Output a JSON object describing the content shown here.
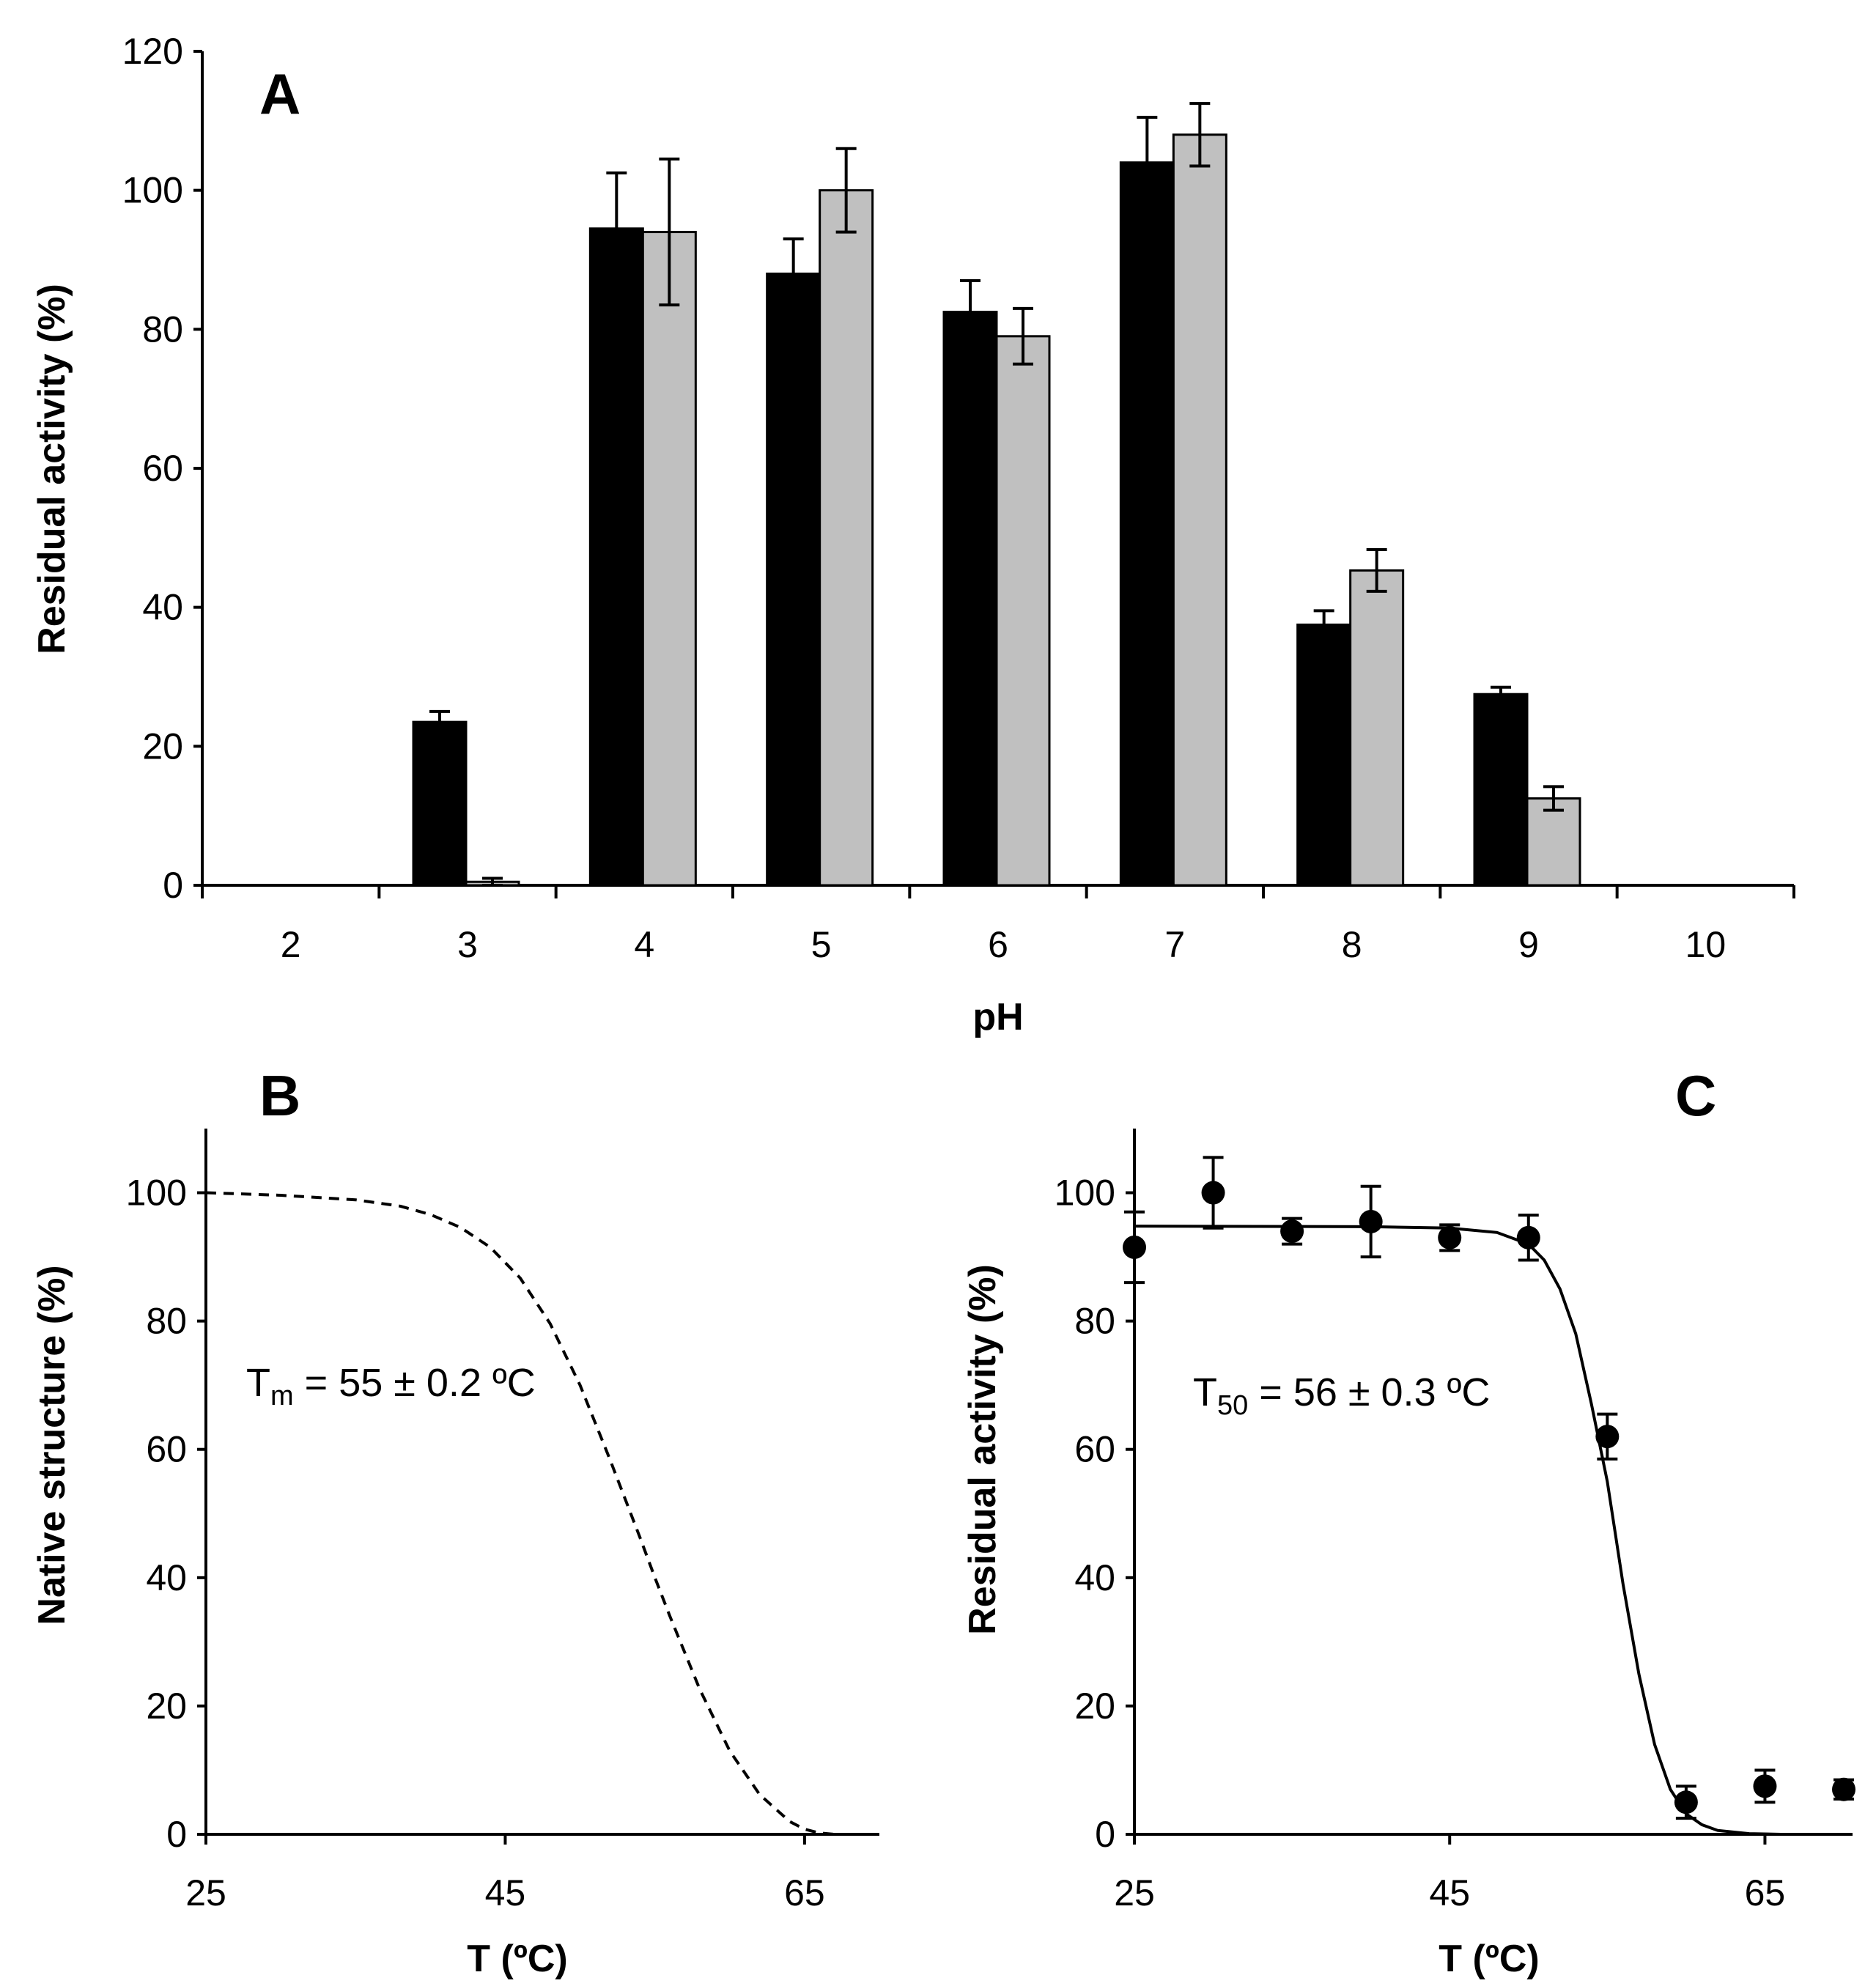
{
  "chart_data": [
    {
      "id": "A",
      "type": "bar",
      "panel_label": "A",
      "title": "",
      "xlabel": "pH",
      "ylabel": "Residual activity  (%)",
      "categories": [
        "2",
        "3",
        "4",
        "5",
        "6",
        "7",
        "8",
        "9",
        "10"
      ],
      "ylim": [
        0,
        120
      ],
      "yticks": [
        "0",
        "20",
        "40",
        "60",
        "80",
        "100",
        "120"
      ],
      "grid": false,
      "series": [
        {
          "name": "series-black",
          "color": "#000000",
          "values": [
            0,
            23.5,
            94.5,
            88,
            82.5,
            104,
            37.5,
            27.5,
            0
          ],
          "errors": [
            0,
            1.5,
            8,
            5,
            4.5,
            6.5,
            2,
            1,
            0
          ]
        },
        {
          "name": "series-grey",
          "color": "#c0c0c0",
          "values": [
            0,
            0.5,
            94,
            100,
            79,
            108,
            45.3,
            12.5,
            0
          ],
          "errors": [
            0,
            0.5,
            10.5,
            6,
            4,
            4.5,
            3,
            1.7,
            0
          ]
        }
      ]
    },
    {
      "id": "B",
      "type": "line",
      "panel_label": "B",
      "xlabel": "T (ºC)",
      "ylabel": "Native structure  (%)",
      "xlim": [
        25,
        70
      ],
      "ylim": [
        0,
        110
      ],
      "xticks": [
        "25",
        "45",
        "65"
      ],
      "yticks": [
        "0",
        "20",
        "40",
        "60",
        "80",
        "100"
      ],
      "annotation": {
        "prefix": "T",
        "sub": "m",
        "text": " = 55 ± 0.2 ºC"
      },
      "curve": {
        "style": "dashed",
        "x": [
          25,
          30,
          35,
          38,
          40,
          42,
          44,
          46,
          48,
          50,
          52,
          54,
          55,
          56,
          58,
          60,
          62,
          64,
          65,
          66,
          67
        ],
        "y": [
          100,
          99.6,
          98.9,
          97.9,
          96.6,
          94.6,
          91.5,
          86.7,
          79.6,
          70,
          58.4,
          46.3,
          40,
          34,
          22.6,
          13,
          6.2,
          2,
          0.8,
          0.2,
          0
        ]
      }
    },
    {
      "id": "C",
      "type": "scatter",
      "panel_label": "C",
      "xlabel": "T (ºC)",
      "ylabel": "Residual activity  (%)",
      "xlim": [
        25,
        70
      ],
      "ylim": [
        0,
        110
      ],
      "xticks": [
        "25",
        "45",
        "65"
      ],
      "yticks": [
        "0",
        "20",
        "40",
        "60",
        "80",
        "100"
      ],
      "annotation": {
        "prefix": "T",
        "sub": "50",
        "text": " = 56 ± 0.3 ºC"
      },
      "points": {
        "x": [
          25,
          30,
          35,
          40,
          45,
          50,
          55,
          60,
          65,
          70
        ],
        "y": [
          91.5,
          100,
          94,
          95.5,
          93,
          93,
          62,
          5,
          7.5,
          7
        ],
        "errors": [
          5.5,
          5.5,
          2,
          5.5,
          2,
          3.5,
          3.5,
          2.5,
          2.5,
          1.5
        ]
      },
      "curve": {
        "style": "solid",
        "x": [
          25,
          40,
          45,
          48,
          50,
          51,
          52,
          53,
          54,
          55,
          55.5,
          56,
          56.5,
          57,
          58,
          59,
          60,
          61,
          62,
          64,
          66
        ],
        "y": [
          94.8,
          94.7,
          94.5,
          93.8,
          92,
          89.5,
          85,
          78,
          67,
          55,
          47,
          39,
          32,
          25,
          14,
          7,
          3.2,
          1.5,
          0.6,
          0.1,
          0
        ]
      }
    }
  ]
}
